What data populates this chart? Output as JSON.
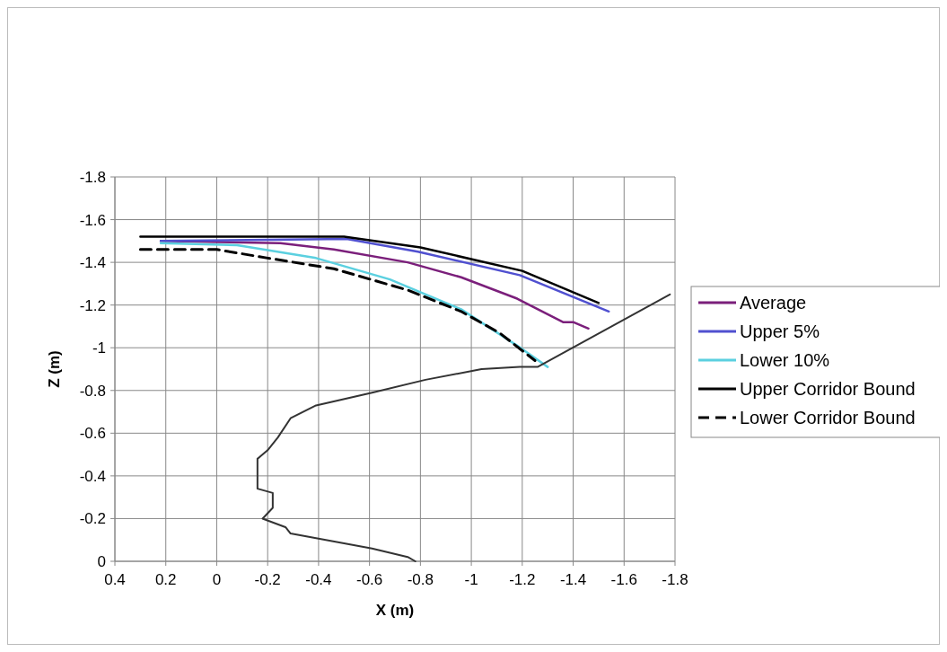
{
  "chart_data": {
    "type": "line",
    "xlabel": "X (m)",
    "ylabel": "Z (m)",
    "xlim": [
      0.4,
      -1.8
    ],
    "xticks": [
      0.4,
      0.2,
      0,
      -0.2,
      -0.4,
      -0.6,
      -0.8,
      -1,
      -1.2,
      -1.4,
      -1.6,
      -1.8
    ],
    "ylim": [
      0,
      -1.8
    ],
    "yticks": [
      0,
      -0.2,
      -0.4,
      -0.6,
      -0.8,
      -1,
      -1.2,
      -1.4,
      -1.6,
      -1.8
    ],
    "grid": true,
    "legend": "right",
    "marker": "none",
    "series": [
      {
        "name": "Average",
        "color": "#7b1f7b",
        "line_style": "solid",
        "x": [
          0.22,
          -0.25,
          -0.46,
          -0.75,
          -0.96,
          -1.18,
          -1.36,
          -1.4,
          -1.46
        ],
        "values": [
          -1.5,
          -1.49,
          -1.46,
          -1.4,
          -1.33,
          -1.23,
          -1.12,
          -1.12,
          -1.09
        ]
      },
      {
        "name": "Upper 5%",
        "color": "#5050d0",
        "line_style": "solid",
        "x": [
          0.22,
          -0.51,
          -0.79,
          -1.19,
          -1.54
        ],
        "values": [
          -1.5,
          -1.51,
          -1.45,
          -1.34,
          -1.17
        ]
      },
      {
        "name": "Lower 10%",
        "color": "#5bd0e0",
        "line_style": "solid",
        "x": [
          0.22,
          -0.08,
          -0.39,
          -0.68,
          -0.96,
          -1.18,
          -1.3
        ],
        "values": [
          -1.49,
          -1.48,
          -1.42,
          -1.32,
          -1.18,
          -1.01,
          -0.91
        ]
      },
      {
        "color": "#333333",
        "line_style": "solid",
        "x": [
          -0.78,
          -0.75,
          -0.61,
          -0.29,
          -0.27,
          -0.18,
          -0.22,
          -0.22,
          -0.16,
          -0.16,
          -0.2,
          -0.24,
          -0.29,
          -0.39,
          -0.61,
          -0.82,
          -1.04,
          -1.19,
          -1.26,
          -1.78
        ],
        "values": [
          0,
          -0.02,
          -0.06,
          -0.13,
          -0.16,
          -0.2,
          -0.25,
          -0.32,
          -0.34,
          -0.48,
          -0.52,
          -0.58,
          -0.67,
          -0.73,
          -0.79,
          -0.85,
          -0.9,
          -0.91,
          -0.91,
          -1.25
        ]
      },
      {
        "name": "Upper Corridor Bound",
        "color": "#000000",
        "line_style": "solid",
        "x": [
          0.3,
          -0.5,
          -0.8,
          -1.2,
          -1.5
        ],
        "values": [
          -1.52,
          -1.52,
          -1.47,
          -1.36,
          -1.21
        ]
      },
      {
        "name": "Lower Corridor Bound",
        "color": "#000000",
        "line_style": "dashed",
        "x": [
          0.3,
          0.0,
          -0.2,
          -0.46,
          -0.75,
          -0.96,
          -1.11,
          -1.25
        ],
        "values": [
          -1.46,
          -1.46,
          -1.42,
          -1.37,
          -1.27,
          -1.17,
          -1.07,
          -0.94
        ]
      }
    ]
  }
}
